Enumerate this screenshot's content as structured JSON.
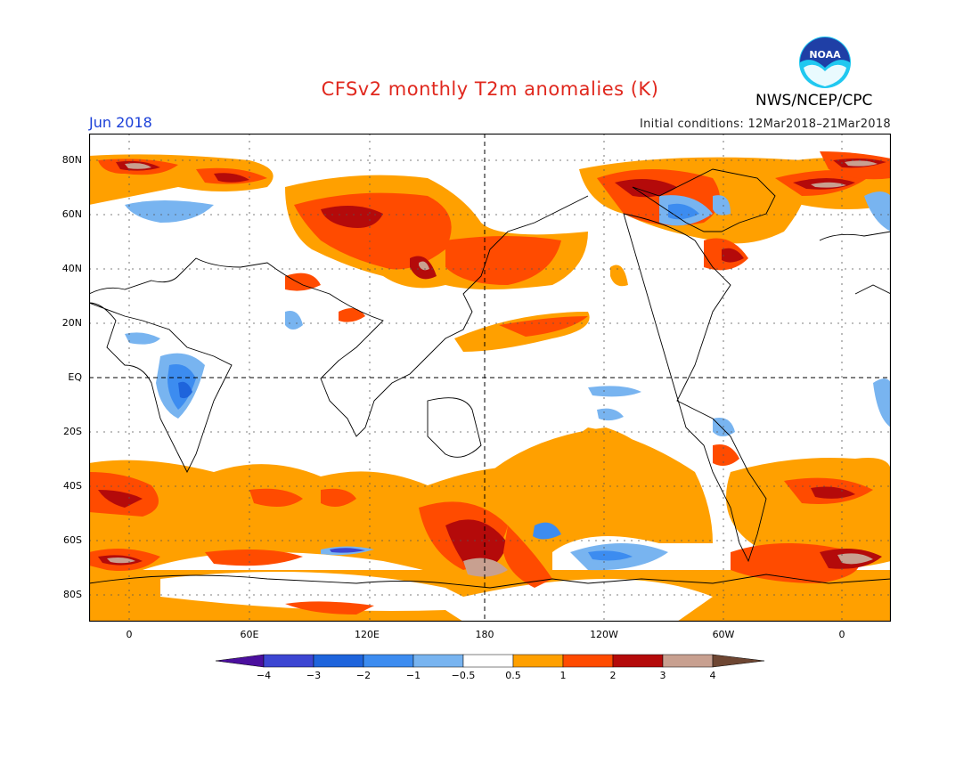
{
  "header": {
    "title": "CFSv2 monthly T2m anomalies (K)",
    "month": "Jun 2018",
    "agency": "NWS/NCEP/CPC",
    "initial_conditions": "Initial conditions: 12Mar2018–21Mar2018",
    "logo_text": "NOAA"
  },
  "map": {
    "lat_labels": [
      "80N",
      "60N",
      "40N",
      "20N",
      "EQ",
      "20S",
      "40S",
      "60S",
      "80S"
    ],
    "lon_labels": [
      "0",
      "60E",
      "120E",
      "180",
      "120W",
      "60W",
      "0"
    ],
    "lon_range": [
      -20,
      380
    ],
    "lat_range": [
      -90,
      90
    ]
  },
  "colorbar": {
    "labels": [
      "−4",
      "−3",
      "−2",
      "−1",
      "−0.5",
      "0.5",
      "1",
      "2",
      "3",
      "4"
    ],
    "colors": [
      "#4b0f9e",
      "#3c46d2",
      "#1e64dc",
      "#3c8cf0",
      "#78b4f0",
      "#ffffff",
      "#ffa000",
      "#ff4b00",
      "#b40a0a",
      "#c8a090",
      "#6e4632"
    ]
  }
}
